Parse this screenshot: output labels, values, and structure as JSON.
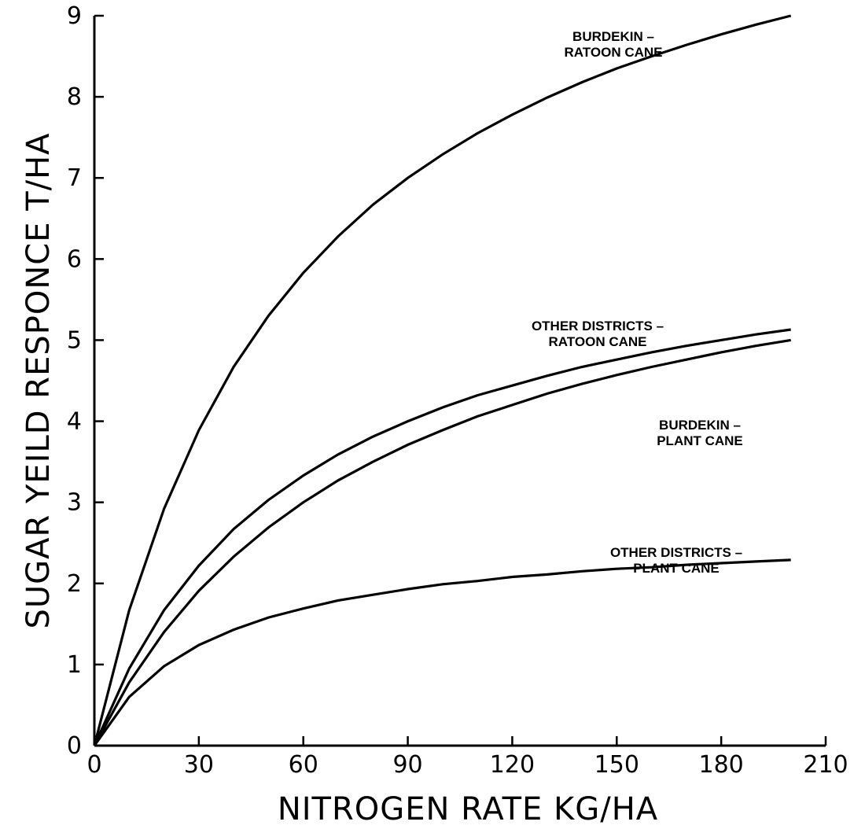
{
  "chart_data": {
    "type": "line",
    "xlabel": "NITROGEN RATE KG/HA",
    "ylabel": "SUGAR YEILD RESPONCE T/HA",
    "xlim": [
      0,
      210
    ],
    "ylim": [
      0,
      9
    ],
    "xticks": [
      0,
      30,
      60,
      90,
      120,
      150,
      180,
      210
    ],
    "yticks": [
      0,
      1,
      2,
      3,
      4,
      5,
      6,
      7,
      8,
      9
    ],
    "grid": false,
    "x": [
      0,
      10,
      20,
      30,
      40,
      50,
      60,
      70,
      80,
      90,
      100,
      110,
      120,
      130,
      140,
      150,
      160,
      170,
      180,
      190,
      200
    ],
    "series": [
      {
        "name": "BURDEKIN - RATOON CANE",
        "label_lines": [
          "BURDEKIN –",
          "RATOON CANE"
        ],
        "values": [
          0,
          1.67,
          2.92,
          3.89,
          4.67,
          5.3,
          5.83,
          6.28,
          6.67,
          7.0,
          7.29,
          7.55,
          7.78,
          7.99,
          8.18,
          8.35,
          8.5,
          8.64,
          8.77,
          8.89,
          9.0
        ]
      },
      {
        "name": "OTHER DISTRICTS - RATOON CANE",
        "label_lines": [
          "OTHER DISTRICTS –",
          "RATOON CANE"
        ],
        "values": [
          0,
          0.95,
          1.67,
          2.22,
          2.67,
          3.03,
          3.33,
          3.59,
          3.81,
          4.0,
          4.17,
          4.32,
          4.44,
          4.56,
          4.67,
          4.76,
          4.85,
          4.93,
          5.0,
          5.07,
          5.13
        ]
      },
      {
        "name": "BURDEKIN - PLANT CANE",
        "label_lines": [
          "BURDEKIN –",
          "PLANT CANE"
        ],
        "values": [
          0,
          0.78,
          1.4,
          1.91,
          2.33,
          2.69,
          3.0,
          3.27,
          3.5,
          3.71,
          3.89,
          4.06,
          4.2,
          4.34,
          4.46,
          4.57,
          4.67,
          4.76,
          4.85,
          4.93,
          5.0
        ]
      },
      {
        "name": "OTHER DISTRICTS - PLANT CANE",
        "label_lines": [
          "OTHER DISTRICTS –",
          "PLANT CANE"
        ],
        "values": [
          0,
          0.6,
          0.98,
          1.24,
          1.43,
          1.58,
          1.69,
          1.79,
          1.86,
          1.93,
          1.99,
          2.03,
          2.08,
          2.11,
          2.15,
          2.18,
          2.2,
          2.23,
          2.25,
          2.27,
          2.29
        ]
      }
    ]
  }
}
